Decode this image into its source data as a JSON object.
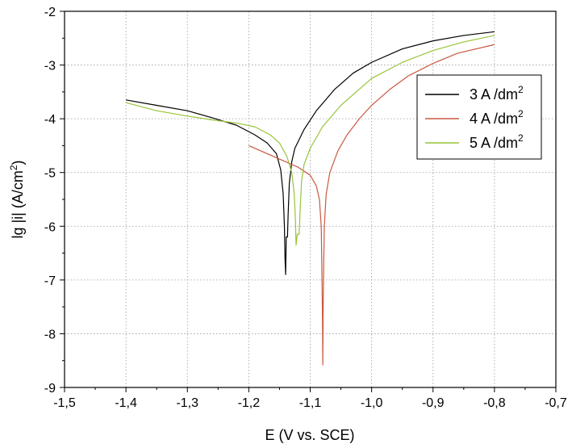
{
  "chart_data": {
    "type": "line",
    "xlabel": "E (V vs. SCE)",
    "ylabel_main": "lg |i| (A/cm",
    "ylabel_sup": "2",
    "ylabel_end": ")",
    "xlim": [
      -1.5,
      -0.7
    ],
    "ylim": [
      -9,
      -2
    ],
    "xticks": [
      -1.5,
      -1.4,
      -1.3,
      -1.2,
      -1.1,
      -1.0,
      -0.9,
      -0.8,
      -0.7
    ],
    "xtick_labels": [
      "-1,5",
      "-1,4",
      "-1,3",
      "-1,2",
      "-1,1",
      "-1,0",
      "-0,9",
      "-0,8",
      "-0,7"
    ],
    "yticks": [
      -9,
      -8,
      -7,
      -6,
      -5,
      -4,
      -3,
      -2
    ],
    "ytick_labels": [
      "-9",
      "-8",
      "-7",
      "-6",
      "-5",
      "-4",
      "-3",
      "-2"
    ],
    "grid": true,
    "legend_position": "top-right",
    "series": [
      {
        "name": "3 A /dm",
        "name_sup": "2",
        "color": "#000000",
        "points": [
          [
            -1.4,
            -3.65
          ],
          [
            -1.35,
            -3.75
          ],
          [
            -1.3,
            -3.85
          ],
          [
            -1.26,
            -3.98
          ],
          [
            -1.22,
            -4.12
          ],
          [
            -1.19,
            -4.3
          ],
          [
            -1.17,
            -4.45
          ],
          [
            -1.155,
            -4.65
          ],
          [
            -1.148,
            -4.95
          ],
          [
            -1.144,
            -5.4
          ],
          [
            -1.142,
            -6.0
          ],
          [
            -1.141,
            -6.6
          ],
          [
            -1.14,
            -6.9
          ],
          [
            -1.139,
            -6.2
          ],
          [
            -1.137,
            -6.2
          ],
          [
            -1.136,
            -5.8
          ],
          [
            -1.134,
            -5.2
          ],
          [
            -1.13,
            -4.8
          ],
          [
            -1.125,
            -4.55
          ],
          [
            -1.11,
            -4.2
          ],
          [
            -1.09,
            -3.85
          ],
          [
            -1.06,
            -3.45
          ],
          [
            -1.03,
            -3.15
          ],
          [
            -1.0,
            -2.95
          ],
          [
            -0.95,
            -2.7
          ],
          [
            -0.9,
            -2.55
          ],
          [
            -0.85,
            -2.45
          ],
          [
            -0.8,
            -2.38
          ]
        ]
      },
      {
        "name": "4 A /dm",
        "name_sup": "2",
        "color": "#c8593f",
        "points": [
          [
            -1.2,
            -4.5
          ],
          [
            -1.18,
            -4.6
          ],
          [
            -1.15,
            -4.75
          ],
          [
            -1.12,
            -4.9
          ],
          [
            -1.1,
            -5.05
          ],
          [
            -1.09,
            -5.25
          ],
          [
            -1.085,
            -5.5
          ],
          [
            -1.082,
            -6.0
          ],
          [
            -1.081,
            -6.8
          ],
          [
            -1.08,
            -7.7
          ],
          [
            -1.0795,
            -8.58
          ],
          [
            -1.079,
            -7.6
          ],
          [
            -1.078,
            -6.7
          ],
          [
            -1.077,
            -6.0
          ],
          [
            -1.074,
            -5.4
          ],
          [
            -1.068,
            -5.0
          ],
          [
            -1.055,
            -4.6
          ],
          [
            -1.04,
            -4.3
          ],
          [
            -1.02,
            -4.0
          ],
          [
            -1.0,
            -3.75
          ],
          [
            -0.97,
            -3.45
          ],
          [
            -0.94,
            -3.2
          ],
          [
            -0.9,
            -2.97
          ],
          [
            -0.86,
            -2.78
          ],
          [
            -0.8,
            -2.62
          ]
        ]
      },
      {
        "name": "5 A /dm",
        "name_sup": "2",
        "color": "#97c43a",
        "points": [
          [
            -1.4,
            -3.7
          ],
          [
            -1.35,
            -3.85
          ],
          [
            -1.3,
            -3.95
          ],
          [
            -1.26,
            -4.02
          ],
          [
            -1.22,
            -4.08
          ],
          [
            -1.19,
            -4.15
          ],
          [
            -1.165,
            -4.3
          ],
          [
            -1.15,
            -4.45
          ],
          [
            -1.138,
            -4.7
          ],
          [
            -1.13,
            -5.0
          ],
          [
            -1.126,
            -5.4
          ],
          [
            -1.124,
            -5.9
          ],
          [
            -1.123,
            -6.35
          ],
          [
            -1.121,
            -6.15
          ],
          [
            -1.118,
            -6.15
          ],
          [
            -1.116,
            -5.6
          ],
          [
            -1.114,
            -5.15
          ],
          [
            -1.11,
            -4.85
          ],
          [
            -1.1,
            -4.55
          ],
          [
            -1.08,
            -4.15
          ],
          [
            -1.05,
            -3.75
          ],
          [
            -1.0,
            -3.25
          ],
          [
            -0.95,
            -2.95
          ],
          [
            -0.9,
            -2.73
          ],
          [
            -0.85,
            -2.57
          ],
          [
            -0.8,
            -2.45
          ]
        ]
      }
    ]
  }
}
